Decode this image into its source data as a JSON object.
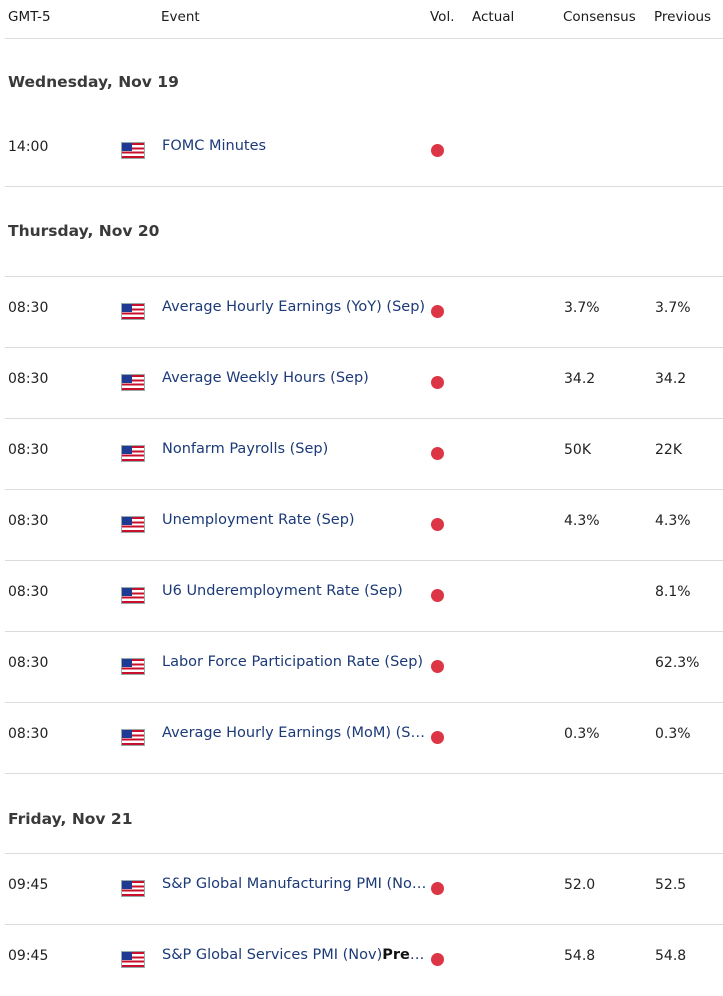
{
  "header": {
    "timezone": "GMT-5",
    "event": "Event",
    "vol": "Vol.",
    "actual": "Actual",
    "consensus": "Consensus",
    "previous": "Previous"
  },
  "colors": {
    "event_link": "#1c3a78",
    "high_volatility_dot": "#dc3545"
  },
  "days": [
    {
      "label": "Wednesday, Nov 19",
      "events": [
        {
          "time": "14:00",
          "flag": "us-flag-icon",
          "event": "FOMC Minutes",
          "event_suffix": "",
          "volatility": "high",
          "actual": "",
          "consensus": "",
          "previous": ""
        }
      ]
    },
    {
      "label": "Thursday, Nov 20",
      "events": [
        {
          "time": "08:30",
          "flag": "us-flag-icon",
          "event": "Average Hourly Earnings (YoY) (Sep)",
          "event_suffix": "",
          "volatility": "high",
          "actual": "",
          "consensus": "3.7%",
          "previous": "3.7%"
        },
        {
          "time": "08:30",
          "flag": "us-flag-icon",
          "event": "Average Weekly Hours (Sep)",
          "event_suffix": "",
          "volatility": "high",
          "actual": "",
          "consensus": "34.2",
          "previous": "34.2"
        },
        {
          "time": "08:30",
          "flag": "us-flag-icon",
          "event": "Nonfarm Payrolls (Sep)",
          "event_suffix": "",
          "volatility": "high",
          "actual": "",
          "consensus": "50K",
          "previous": "22K"
        },
        {
          "time": "08:30",
          "flag": "us-flag-icon",
          "event": "Unemployment Rate (Sep)",
          "event_suffix": "",
          "volatility": "high",
          "actual": "",
          "consensus": "4.3%",
          "previous": "4.3%"
        },
        {
          "time": "08:30",
          "flag": "us-flag-icon",
          "event": "U6 Underemployment Rate (Sep)",
          "event_suffix": "",
          "volatility": "high",
          "actual": "",
          "consensus": "",
          "previous": "8.1%"
        },
        {
          "time": "08:30",
          "flag": "us-flag-icon",
          "event": "Labor Force Participation Rate (Sep)",
          "event_suffix": "",
          "volatility": "high",
          "actual": "",
          "consensus": "",
          "previous": "62.3%"
        },
        {
          "time": "08:30",
          "flag": "us-flag-icon",
          "event": "Average Hourly Earnings (MoM) (Sep)",
          "event_suffix": "",
          "volatility": "high",
          "actual": "",
          "consensus": "0.3%",
          "previous": "0.3%"
        }
      ]
    },
    {
      "label": "Friday, Nov 21",
      "events": [
        {
          "time": "09:45",
          "flag": "us-flag-icon",
          "event": "S&P Global Manufacturing PMI (Nov)…",
          "event_suffix": "",
          "volatility": "high",
          "actual": "",
          "consensus": "52.0",
          "previous": "52.5"
        },
        {
          "time": "09:45",
          "flag": "us-flag-icon",
          "event": "S&P Global Services PMI (Nov)",
          "event_suffix": "Prelimi…",
          "volatility": "high",
          "actual": "",
          "consensus": "54.8",
          "previous": "54.8"
        }
      ]
    }
  ]
}
